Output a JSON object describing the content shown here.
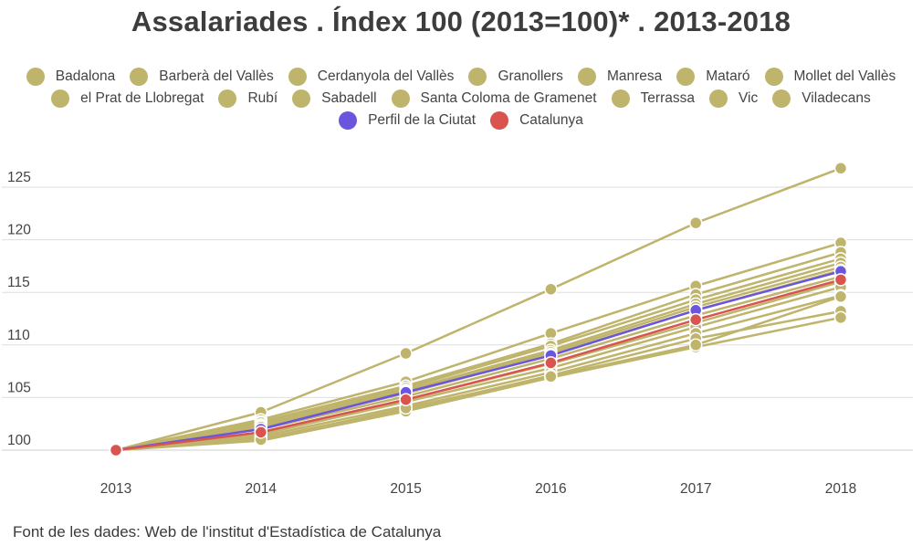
{
  "chart_data": {
    "type": "line",
    "title": "Assalariades . Índex 100 (2013=100)* . 2013-2018",
    "xlabel": "",
    "ylabel": "",
    "x": [
      "2013",
      "2014",
      "2015",
      "2016",
      "2017",
      "2018"
    ],
    "yticks": [
      100,
      105,
      110,
      115,
      120,
      125
    ],
    "ylim": [
      99,
      127
    ],
    "grid": true,
    "legend": "top",
    "series": [
      {
        "name": "Badalona",
        "color": "#bfb46b",
        "values": [
          100,
          103.6,
          109.2,
          115.3,
          121.6,
          126.8
        ]
      },
      {
        "name": "Barberà del Vallès",
        "color": "#bfb46b",
        "values": [
          100,
          102.9,
          106.5,
          111.1,
          115.6,
          119.7
        ]
      },
      {
        "name": "Cerdanyola del Vallès",
        "color": "#bfb46b",
        "values": [
          100,
          102.7,
          106.1,
          110.1,
          114.8,
          118.8
        ]
      },
      {
        "name": "Granollers",
        "color": "#bfb46b",
        "values": [
          100,
          102.6,
          105.9,
          109.9,
          114.3,
          118.2
        ]
      },
      {
        "name": "Manresa",
        "color": "#bfb46b",
        "values": [
          100,
          102.4,
          105.7,
          109.5,
          113.9,
          117.8
        ]
      },
      {
        "name": "Mataró",
        "color": "#bfb46b",
        "values": [
          100,
          102.3,
          105.6,
          109.3,
          113.6,
          117.4
        ]
      },
      {
        "name": "Mollet del Vallès",
        "color": "#bfb46b",
        "values": [
          100,
          102.2,
          105.4,
          109.1,
          113.3,
          117.1
        ]
      },
      {
        "name": "el Prat de Llobregat",
        "color": "#bfb46b",
        "values": [
          100,
          102.0,
          105.1,
          108.7,
          112.8,
          116.5
        ]
      },
      {
        "name": "Rubí",
        "color": "#bfb46b",
        "values": [
          100,
          101.7,
          104.8,
          108.2,
          112.1,
          116.0
        ]
      },
      {
        "name": "Sabadell",
        "color": "#bfb46b",
        "values": [
          100,
          101.5,
          104.6,
          107.8,
          111.7,
          115.5
        ]
      },
      {
        "name": "Santa Coloma de Gramenet",
        "color": "#bfb46b",
        "values": [
          100,
          101.3,
          104.2,
          107.4,
          111.1,
          114.7
        ]
      },
      {
        "name": "Terrassa",
        "color": "#bfb46b",
        "values": [
          100,
          101.1,
          103.9,
          107.1,
          110.6,
          113.2
        ]
      },
      {
        "name": "Vic",
        "color": "#bfb46b",
        "values": [
          100,
          100.9,
          103.7,
          106.9,
          109.8,
          112.6
        ]
      },
      {
        "name": "Viladecans",
        "color": "#bfb46b",
        "values": [
          100,
          101.0,
          104.0,
          107.0,
          110.0,
          114.6
        ]
      },
      {
        "name": "Perfil de la Ciutat",
        "color": "#6a55dd",
        "values": [
          100,
          102.0,
          105.5,
          109.0,
          113.3,
          117.0
        ]
      },
      {
        "name": "Catalunya",
        "color": "#d9534f",
        "values": [
          100,
          101.7,
          104.8,
          108.3,
          112.4,
          116.2
        ]
      }
    ]
  },
  "source_text": "Font de les dades: Web de l'institut d'Estadística de Catalunya"
}
